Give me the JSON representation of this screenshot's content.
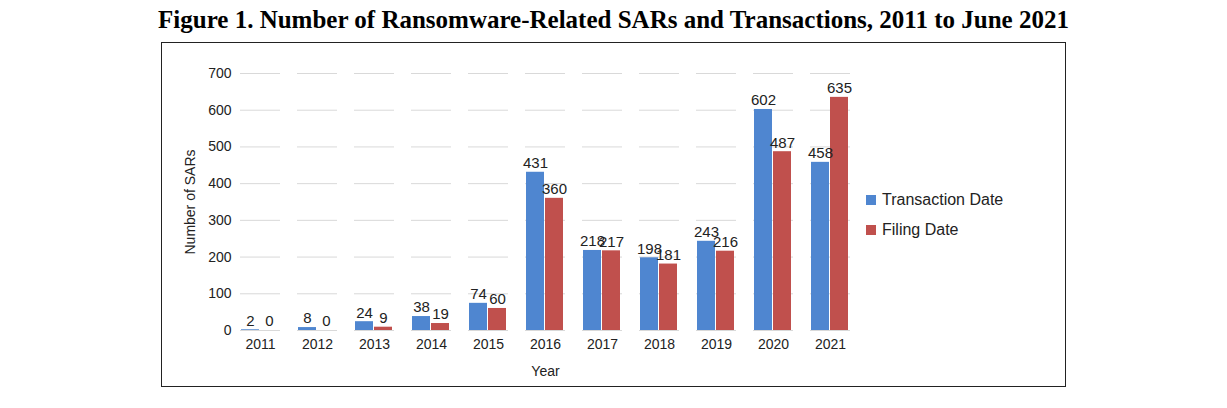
{
  "chart_data": {
    "type": "bar",
    "title": "Figure 1. Number of Ransomware-Related SARs and Transactions, 2011 to June 2021",
    "x_label": "Year",
    "y_label": "Number of SARs",
    "categories": [
      "2011",
      "2012",
      "2013",
      "2014",
      "2015",
      "2016",
      "2017",
      "2018",
      "2019",
      "2020",
      "2021"
    ],
    "series": [
      {
        "name": "Transaction Date",
        "color": "#4f86d0",
        "values": [
          2,
          8,
          24,
          38,
          74,
          431,
          218,
          198,
          243,
          602,
          458
        ]
      },
      {
        "name": "Filing Date",
        "color": "#c0504d",
        "values": [
          0,
          0,
          9,
          19,
          60,
          360,
          217,
          181,
          216,
          487,
          635
        ]
      }
    ],
    "ylim": [
      0,
      700
    ],
    "yticks": [
      0,
      100,
      200,
      300,
      400,
      500,
      600,
      700
    ],
    "grid": true,
    "legend": "right",
    "data_labels": true
  }
}
